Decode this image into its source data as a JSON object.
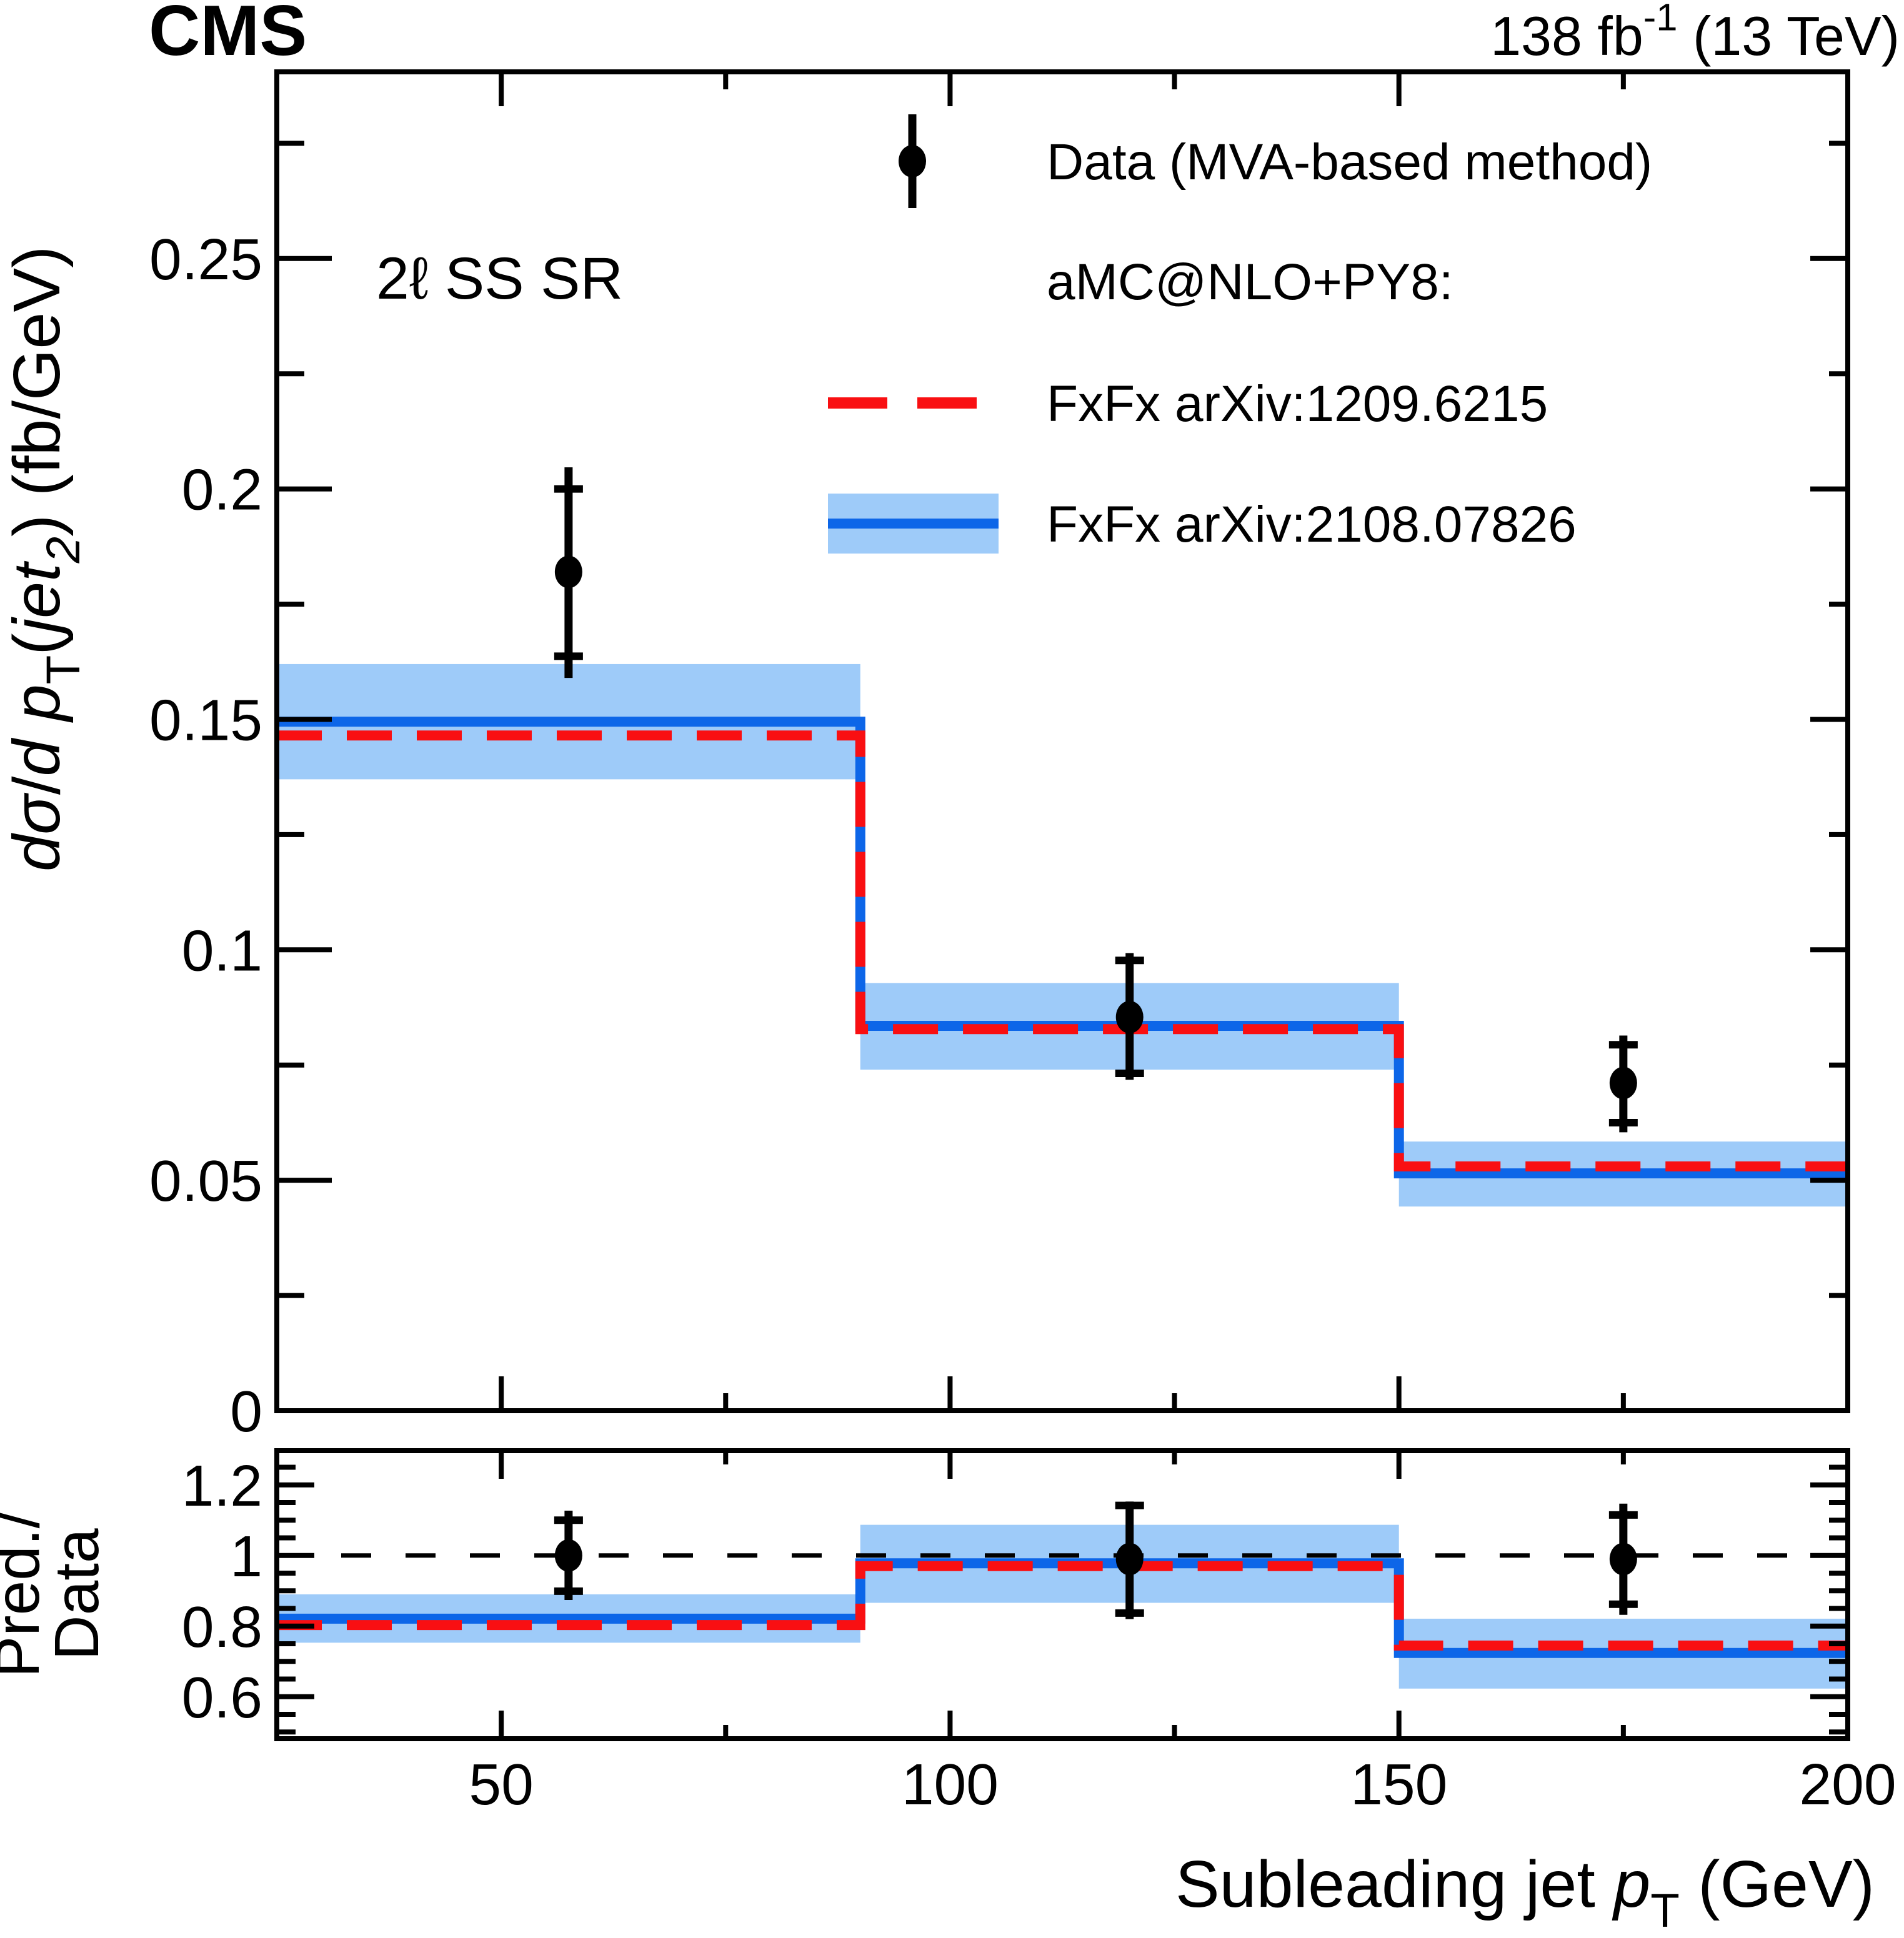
{
  "header": {
    "experiment": "CMS",
    "lumi_parts": [
      {
        "t": "138 fb"
      },
      {
        "t": "-1",
        "sup": 1
      },
      {
        "t": " (13 TeV)"
      }
    ],
    "lumi_text": "138 fb-1 (13 TeV)"
  },
  "panel_label": "2ℓ SS SR",
  "legend": {
    "rows": [
      {
        "label": "Data (MVA-based method)",
        "swatch": "data-marker"
      },
      {
        "label": "aMC@NLO+PY8:",
        "swatch": "none"
      },
      {
        "label": "FxFx arXiv:1209.6215",
        "swatch": "red-dashed-line"
      },
      {
        "label": "FxFx arXiv:2108.07826",
        "swatch": "blue-band-line"
      }
    ]
  },
  "colors": {
    "red": "#f90f12",
    "blue": "#0d66e8",
    "band": "#9ecbf9",
    "black": "#000000",
    "background": "#ffffff"
  },
  "chart_data": {
    "type": "bar",
    "subtype": "step-histogram-with-data-points-and-ratio",
    "title": "CMS, 138 fb-1 (13 TeV), 2l SS SR, subleading jet pT differential cross section",
    "xlabel_parts": [
      {
        "t": "Subleading jet "
      },
      {
        "t": "p",
        "i": 1
      },
      {
        "t": "T",
        "sub": 1
      },
      {
        "t": " (GeV)"
      }
    ],
    "ylabel_parts": [
      {
        "t": "d",
        "i": 1
      },
      {
        "t": "σ",
        "i": 1
      },
      {
        "t": "/",
        "i": 0
      },
      {
        "t": "d ",
        "i": 1
      },
      {
        "t": "p",
        "i": 1
      },
      {
        "t": "T",
        "sub": 1
      },
      {
        "t": "(",
        "i": 0
      },
      {
        "t": "jet",
        "i": 1
      },
      {
        "t": "2",
        "sub": 1,
        "i": 1
      },
      {
        "t": ") (fb/GeV)",
        "i": 0
      }
    ],
    "ratio_ylabel_lines": [
      "Pred./",
      "Data"
    ],
    "x_unit": "GeV",
    "xlim": [
      25,
      200
    ],
    "main_ylim": [
      0,
      0.2905
    ],
    "ratio_ylim": [
      0.481,
      1.297
    ],
    "grid": false,
    "legend_position": "top-right-inside",
    "bin_edges": [
      25,
      90,
      150,
      200
    ],
    "axes": {
      "x_ticks": [
        {
          "v": 50,
          "label": "50"
        },
        {
          "v": 100,
          "label": "100"
        },
        {
          "v": 150,
          "label": "150"
        },
        {
          "v": 200,
          "label": "200"
        }
      ],
      "x_minor": [
        75,
        125,
        175
      ],
      "main_y_ticks": [
        {
          "v": 0,
          "label": "0"
        },
        {
          "v": 0.05,
          "label": "0.05"
        },
        {
          "v": 0.1,
          "label": "0.1"
        },
        {
          "v": 0.15,
          "label": "0.15"
        },
        {
          "v": 0.2,
          "label": "0.2"
        },
        {
          "v": 0.25,
          "label": "0.25"
        }
      ],
      "main_y_minor": [
        0.025,
        0.075,
        0.125,
        0.175,
        0.225,
        0.275
      ],
      "ratio_y_ticks": [
        {
          "v": 0.6,
          "label": "0.6"
        },
        {
          "v": 0.8,
          "label": "0.8"
        },
        {
          "v": 1.0,
          "label": "1"
        },
        {
          "v": 1.2,
          "label": "1.2"
        }
      ],
      "ratio_y_minor": [
        0.5,
        0.55,
        0.65,
        0.7,
        0.75,
        0.85,
        0.9,
        0.95,
        1.05,
        1.1,
        1.15,
        1.25
      ]
    },
    "series": [
      {
        "name": "FxFx arXiv:2108.07826",
        "style": "solid-blue-with-band",
        "values": [
          0.1495,
          0.0835,
          0.0515
        ],
        "band_lo": [
          0.137,
          0.074,
          0.0443
        ],
        "band_hi": [
          0.162,
          0.0928,
          0.0584
        ]
      },
      {
        "name": "FxFx arXiv:1209.6215",
        "style": "dashed-red",
        "values": [
          0.1465,
          0.0828,
          0.053
        ]
      }
    ],
    "data_points": {
      "name": "Data (MVA-based method)",
      "x": [
        57.5,
        120,
        175
      ],
      "y": [
        0.182,
        0.0854,
        0.0711
      ],
      "bar_lo": [
        0.159,
        0.0718,
        0.0604
      ],
      "bar_hi": [
        0.2047,
        0.0993,
        0.0814
      ],
      "cap_lo": [
        0.1637,
        0.0732,
        0.0625
      ],
      "cap_hi": [
        0.2,
        0.0977,
        0.0794
      ]
    },
    "ratio": {
      "reference_line": 1.0,
      "blue": [
        0.821,
        0.978,
        0.724
      ],
      "red": [
        0.803,
        0.97,
        0.745
      ],
      "band_lo": [
        0.753,
        0.866,
        0.623
      ],
      "band_hi": [
        0.89,
        1.087,
        0.821
      ],
      "points": {
        "x": [
          57.5,
          120,
          175
        ],
        "y": [
          1.0,
          0.99,
          0.99
        ],
        "bar_lo": [
          0.874,
          0.82,
          0.832
        ],
        "bar_hi": [
          1.127,
          1.153,
          1.147
        ],
        "cap_lo": [
          0.899,
          0.837,
          0.862
        ],
        "cap_hi": [
          1.1,
          1.142,
          1.115
        ]
      }
    }
  }
}
